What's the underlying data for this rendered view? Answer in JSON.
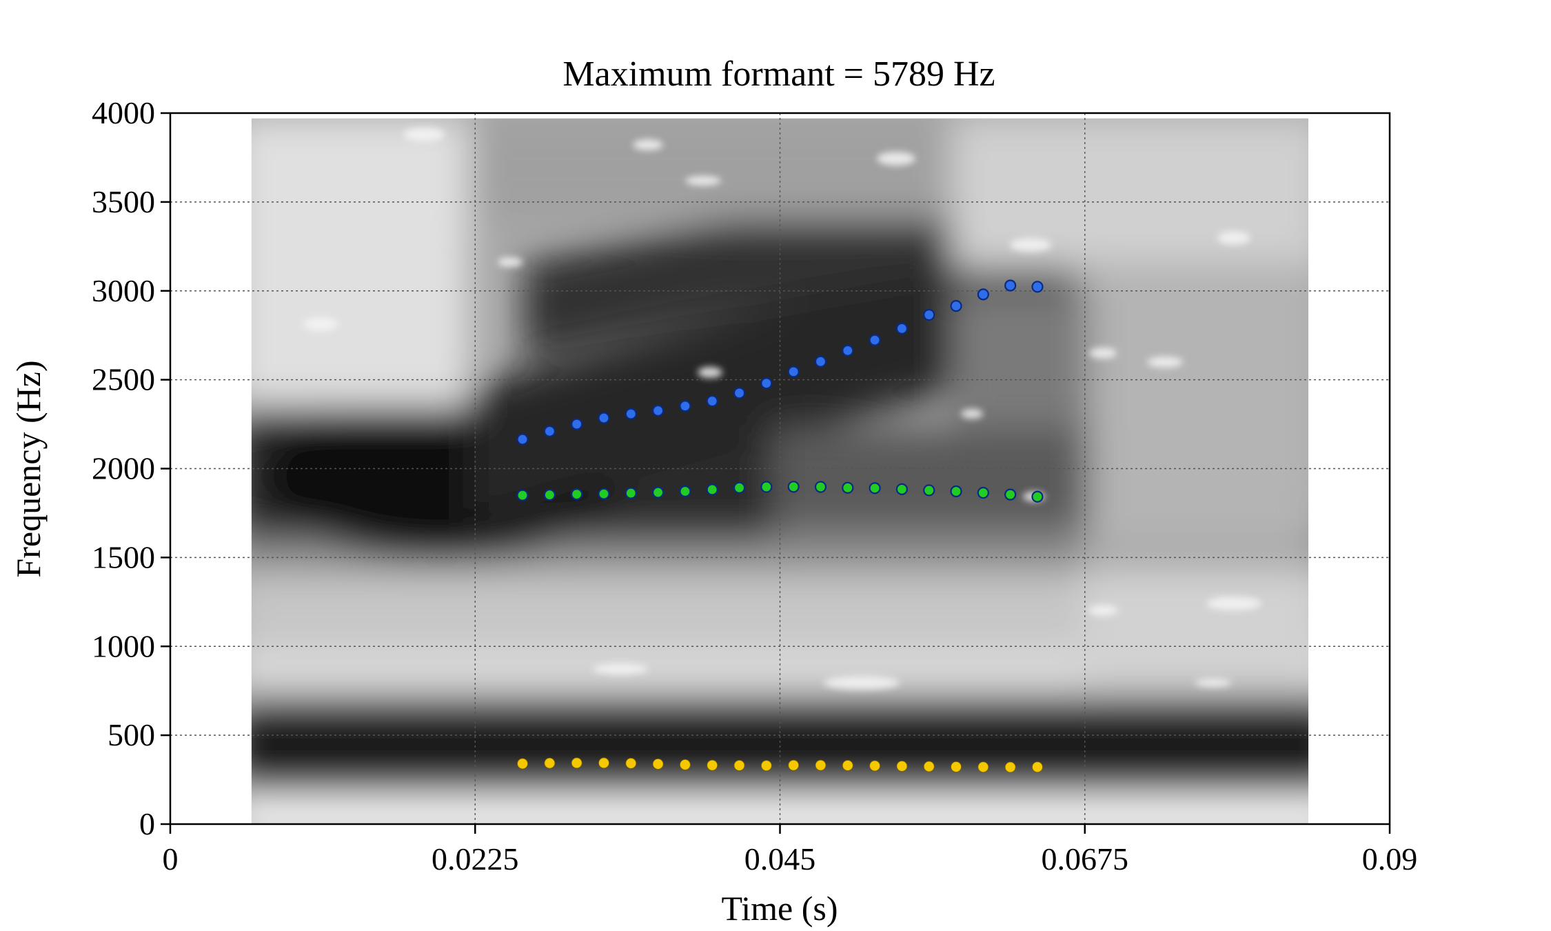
{
  "chart_data": {
    "type": "scatter",
    "title": "Maximum formant = 5789 Hz",
    "xlabel": "Time (s)",
    "ylabel": "Frequency (Hz)",
    "xlim": [
      0,
      0.09
    ],
    "ylim": [
      0,
      4000
    ],
    "xticks": [
      0,
      0.0225,
      0.045,
      0.0675,
      0.09
    ],
    "xtick_labels": [
      "0",
      "0.0225",
      "0.045",
      "0.0675",
      "0.09"
    ],
    "yticks": [
      0,
      500,
      1000,
      1500,
      2000,
      2500,
      3000,
      3500,
      4000
    ],
    "ytick_labels": [
      "0",
      "500",
      "1000",
      "1500",
      "2000",
      "2500",
      "3000",
      "3500",
      "4000"
    ],
    "grid": true,
    "background": "grayscale spectrogram",
    "spectrogram_extent": {
      "x": [
        0.006,
        0.084
      ],
      "y": [
        0,
        3970
      ]
    },
    "x": [
      0.026,
      0.028,
      0.03,
      0.032,
      0.034,
      0.036,
      0.038,
      0.04,
      0.042,
      0.044,
      0.046,
      0.048,
      0.05,
      0.052,
      0.054,
      0.056,
      0.058,
      0.06,
      0.062,
      0.064
    ],
    "series": [
      {
        "color": "#f5c800",
        "values": [
          340,
          343,
          344,
          344,
          342,
          338,
          334,
          331,
          330,
          329,
          331,
          331,
          330,
          328,
          326,
          324,
          322,
          321,
          320,
          321
        ]
      },
      {
        "color": "#22cc22",
        "values": [
          1850,
          1852,
          1856,
          1858,
          1862,
          1866,
          1872,
          1882,
          1892,
          1897,
          1898,
          1897,
          1892,
          1890,
          1884,
          1878,
          1872,
          1864,
          1854,
          1842
        ]
      },
      {
        "color": "#2f6ee8",
        "values": [
          2165,
          2210,
          2250,
          2285,
          2308,
          2326,
          2352,
          2380,
          2425,
          2480,
          2545,
          2602,
          2664,
          2723,
          2788,
          2865,
          2915,
          2980,
          3030,
          3023
        ]
      }
    ]
  }
}
